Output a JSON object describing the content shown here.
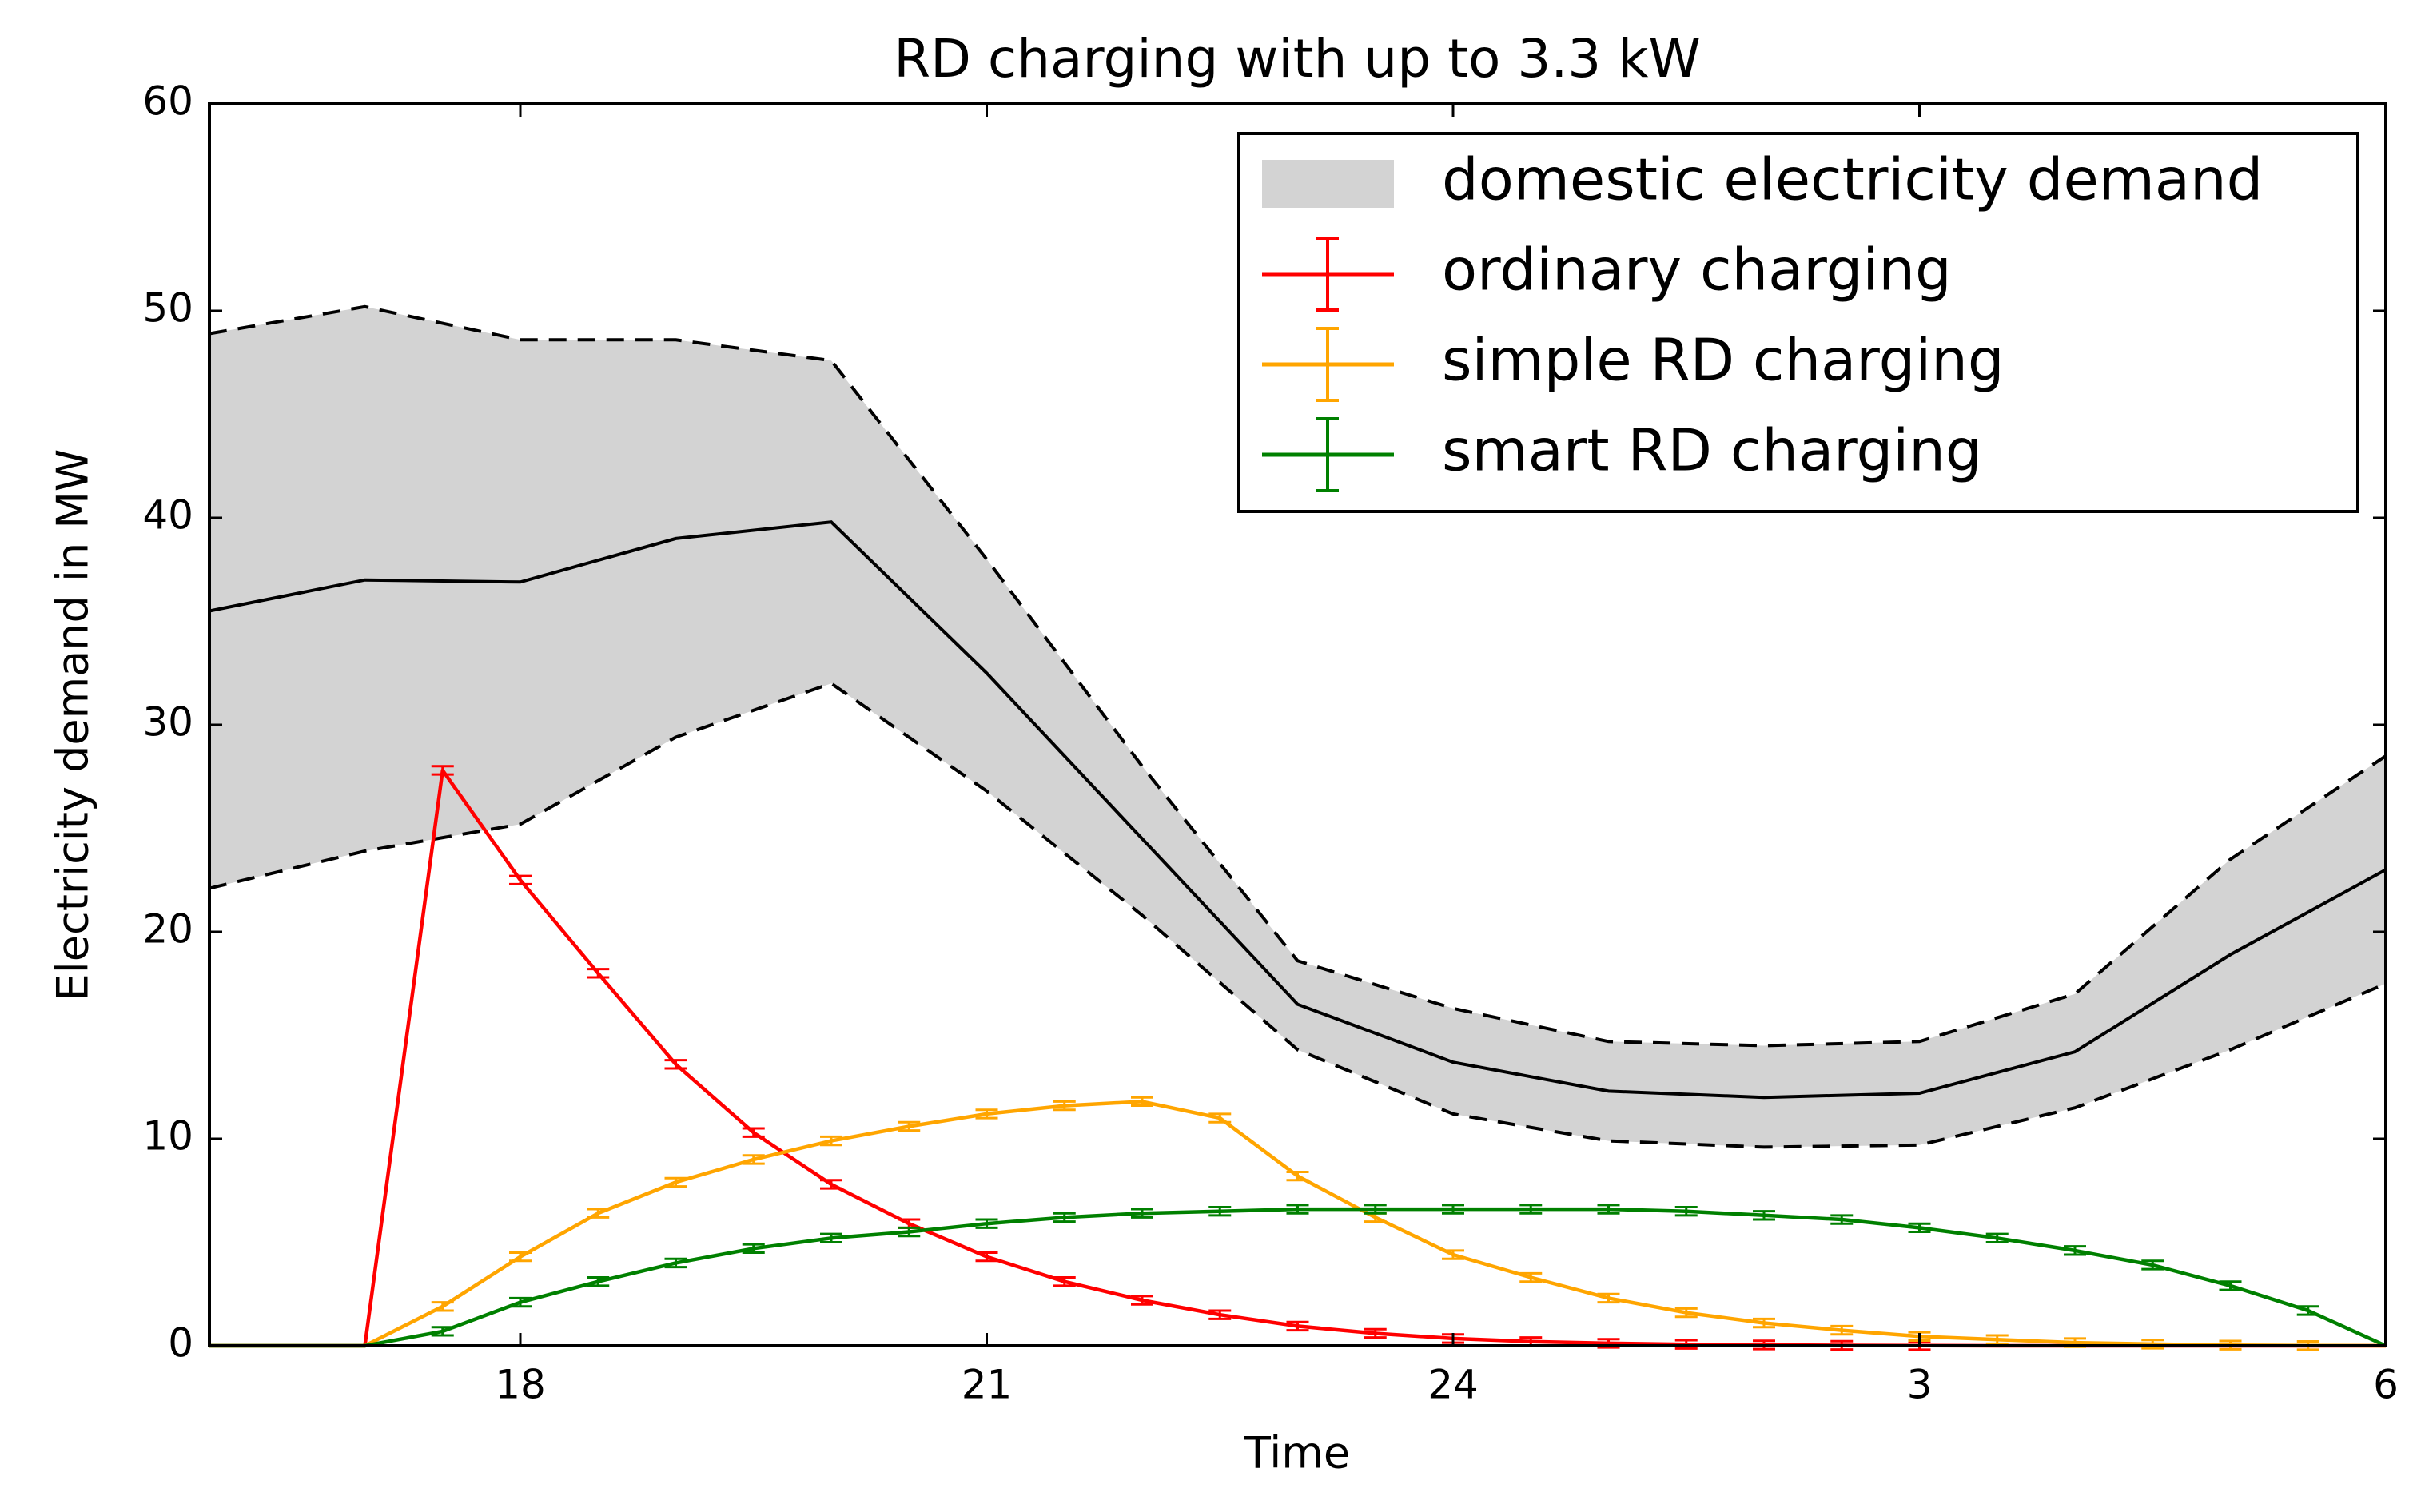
{
  "chart_data": {
    "type": "line",
    "title": "RD charging with up to 3.3 kW",
    "xlabel": "Time",
    "ylabel": "Electricity demand in MW",
    "xlim": [
      16,
      30
    ],
    "xticks": [
      18,
      21,
      24,
      {
        "value": 27,
        "label": "3"
      },
      {
        "value": 30,
        "label": "6"
      }
    ],
    "ylim": [
      0,
      60
    ],
    "yticks": [
      0,
      10,
      20,
      30,
      40,
      50,
      60
    ],
    "legend": "upper right",
    "domestic": {
      "name": "domestic electricity demand",
      "color": "#d3d3d3",
      "x": [
        16,
        17,
        18,
        19,
        20,
        21,
        22,
        23,
        24,
        25,
        26,
        27,
        28,
        29,
        30
      ],
      "mean": [
        35.5,
        37,
        36.9,
        39,
        39.8,
        32.5,
        24.5,
        16.5,
        13.7,
        12.3,
        12.0,
        12.2,
        14.2,
        18.9,
        23.0
      ],
      "upper": [
        48.9,
        50.2,
        48.6,
        48.6,
        47.6,
        38,
        28,
        18.6,
        16.3,
        14.7,
        14.5,
        14.7,
        17.0,
        23.5,
        28.5
      ],
      "lower": [
        22.1,
        23.9,
        25.2,
        29.4,
        32.0,
        26.8,
        20.8,
        14.3,
        11.2,
        9.9,
        9.6,
        9.7,
        11.5,
        14.3,
        17.5
      ]
    },
    "x": [
      16,
      16.5,
      17,
      17.5,
      18,
      18.5,
      19,
      19.5,
      20,
      20.5,
      21,
      21.5,
      22,
      22.5,
      23,
      23.5,
      24,
      24.5,
      25,
      25.5,
      26,
      26.5,
      27,
      27.5,
      28,
      28.5,
      29,
      29.5,
      30
    ],
    "series": [
      {
        "name": "ordinary charging",
        "color": "#ff0000",
        "error": 0.2,
        "values": [
          0,
          0,
          0,
          27.8,
          22.5,
          18,
          13.6,
          10.3,
          7.8,
          5.9,
          4.3,
          3.1,
          2.2,
          1.5,
          0.95,
          0.6,
          0.35,
          0.2,
          0.12,
          0.07,
          0.04,
          0.02,
          0.01,
          0,
          0,
          0,
          0,
          0,
          0
        ]
      },
      {
        "name": "simple RD charging",
        "color": "#ffa500",
        "error": 0.2,
        "values": [
          0,
          0,
          0,
          1.9,
          4.3,
          6.4,
          7.9,
          9.0,
          9.9,
          10.6,
          11.2,
          11.6,
          11.8,
          11.0,
          8.2,
          6.2,
          4.4,
          3.3,
          2.3,
          1.6,
          1.1,
          0.75,
          0.45,
          0.3,
          0.15,
          0.08,
          0.03,
          0.01,
          0
        ]
      },
      {
        "name": "smart RD charging",
        "color": "#008000",
        "error": 0.2,
        "values": [
          0,
          0,
          0,
          0.7,
          2.1,
          3.1,
          4.0,
          4.7,
          5.2,
          5.5,
          5.9,
          6.2,
          6.4,
          6.5,
          6.6,
          6.6,
          6.6,
          6.6,
          6.6,
          6.5,
          6.3,
          6.1,
          5.7,
          5.2,
          4.6,
          3.9,
          2.9,
          1.7,
          0
        ]
      }
    ]
  }
}
